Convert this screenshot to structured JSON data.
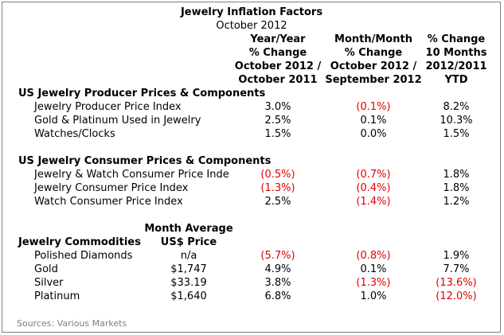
{
  "title": "Jewelry Inflation Factors",
  "subtitle": "October 2012",
  "columns": {
    "yoy": [
      "Year/Year",
      "% Change",
      "October 2012 /",
      "October 2011"
    ],
    "mom": [
      "Month/Month",
      "% Change",
      "October 2012 /",
      "September 2012"
    ],
    "ytd": [
      "% Change",
      "10 Months",
      "2012/2011",
      "YTD"
    ]
  },
  "sections": [
    {
      "heading": "US Jewelry Producer Prices & Components",
      "rows": [
        {
          "label": "Jewelry Producer Price Index",
          "yoy": "3.0%",
          "mom": "(0.1%)",
          "ytd": "8.2%"
        },
        {
          "label": "Gold & Platinum Used in Jewelry",
          "yoy": "2.5%",
          "mom": "0.1%",
          "ytd": "10.3%"
        },
        {
          "label": "Watches/Clocks",
          "yoy": "1.5%",
          "mom": "0.0%",
          "ytd": "1.5%"
        }
      ]
    },
    {
      "heading": "US Jewelry Consumer Prices & Components",
      "rows": [
        {
          "label": "Jewelry & Watch Consumer Price Inde",
          "yoy": "(0.5%)",
          "mom": "(0.7%)",
          "ytd": "1.8%"
        },
        {
          "label": "Jewelry Consumer Price Index",
          "yoy": "(1.3%)",
          "mom": "(0.4%)",
          "ytd": "1.8%"
        },
        {
          "label": "Watch Consumer Price Index",
          "yoy": "2.5%",
          "mom": "(1.4%)",
          "ytd": "1.2%"
        }
      ]
    },
    {
      "heading": "Jewelry Commodities",
      "price_header": [
        "Month Average",
        "US$ Price"
      ],
      "rows": [
        {
          "label": "Polished Diamonds",
          "price": "n/a",
          "yoy": "(5.7%)",
          "mom": "(0.8%)",
          "ytd": "1.9%"
        },
        {
          "label": "Gold",
          "price": "$1,747",
          "yoy": "4.9%",
          "mom": "0.1%",
          "ytd": "7.7%"
        },
        {
          "label": "Silver",
          "price": "$33.19",
          "yoy": "3.8%",
          "mom": "(1.3%)",
          "ytd": "(13.6%)"
        },
        {
          "label": "Platinum",
          "price": "$1,640",
          "yoy": "6.8%",
          "mom": "1.0%",
          "ytd": "(12.0%)"
        }
      ]
    }
  ],
  "source": "Sources:  Various Markets",
  "colors": {
    "negative": "#e00000",
    "source_text": "#7f7f7f",
    "border": "#7f7f7f"
  }
}
